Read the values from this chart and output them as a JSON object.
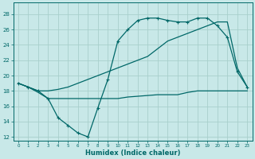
{
  "xlabel": "Humidex (Indice chaleur)",
  "ylabel": "",
  "background_color": "#c8e8e8",
  "grid_color": "#a8d0cc",
  "line_color": "#006868",
  "xlim": [
    -0.5,
    23.5
  ],
  "ylim": [
    11.5,
    29.5
  ],
  "xticks": [
    0,
    1,
    2,
    3,
    4,
    5,
    6,
    7,
    8,
    9,
    10,
    11,
    12,
    13,
    14,
    15,
    16,
    17,
    18,
    19,
    20,
    21,
    22,
    23
  ],
  "yticks": [
    12,
    14,
    16,
    18,
    20,
    22,
    24,
    26,
    28
  ],
  "series": [
    {
      "x": [
        0,
        1,
        2,
        3,
        4,
        5,
        6,
        7,
        8,
        9,
        10,
        11,
        12,
        13,
        14,
        15,
        16,
        17,
        18,
        19,
        20,
        21,
        22,
        23
      ],
      "y": [
        19,
        18.5,
        18,
        17,
        14.5,
        13.5,
        12.5,
        12,
        15.8,
        19.5,
        24.5,
        26,
        27.2,
        27.5,
        27.5,
        27.2,
        27,
        27,
        27.5,
        27.5,
        26.5,
        25,
        20.5,
        18.5
      ],
      "marker": "+",
      "lw": 0.9
    },
    {
      "x": [
        0,
        1,
        2,
        3,
        4,
        5,
        6,
        7,
        8,
        9,
        10,
        11,
        12,
        13,
        14,
        15,
        16,
        17,
        18,
        19,
        20,
        21,
        22,
        23
      ],
      "y": [
        19,
        18.5,
        17.8,
        17,
        17,
        17,
        17,
        17,
        17,
        17,
        17,
        17.2,
        17.3,
        17.4,
        17.5,
        17.5,
        17.5,
        17.8,
        18,
        18,
        18,
        18,
        18,
        18
      ],
      "marker": null,
      "lw": 0.9
    },
    {
      "x": [
        0,
        1,
        2,
        3,
        4,
        5,
        6,
        7,
        8,
        9,
        10,
        11,
        12,
        13,
        14,
        15,
        16,
        17,
        18,
        19,
        20,
        21,
        22,
        23
      ],
      "y": [
        19,
        18.5,
        18,
        18,
        18.2,
        18.5,
        19,
        19.5,
        20,
        20.5,
        21,
        21.5,
        22,
        22.5,
        23.5,
        24.5,
        25,
        25.5,
        26,
        26.5,
        27,
        27,
        21,
        18.5
      ],
      "marker": null,
      "lw": 0.9
    }
  ]
}
